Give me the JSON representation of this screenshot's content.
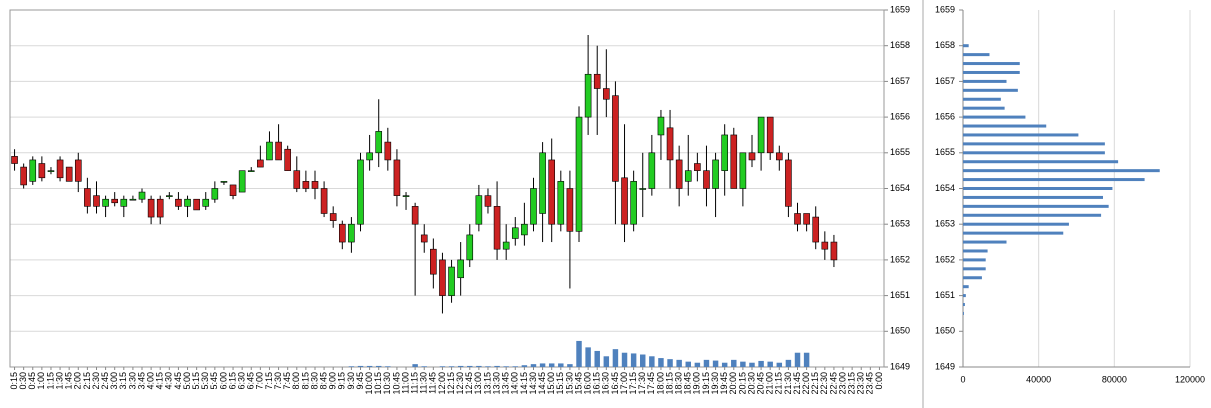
{
  "chart_data": [
    {
      "type": "candlestick",
      "categories": [
        "0:15",
        "0:30",
        "0:45",
        "1:00",
        "1:15",
        "1:30",
        "1:45",
        "2:00",
        "2:15",
        "2:30",
        "2:45",
        "3:00",
        "3:15",
        "3:30",
        "3:45",
        "4:00",
        "4:15",
        "4:30",
        "4:45",
        "5:00",
        "5:15",
        "5:30",
        "5:45",
        "6:00",
        "6:15",
        "6:30",
        "6:45",
        "7:00",
        "7:15",
        "7:30",
        "7:45",
        "8:00",
        "8:15",
        "8:30",
        "8:45",
        "9:00",
        "9:15",
        "9:30",
        "9:45",
        "10:00",
        "10:15",
        "10:30",
        "10:45",
        "11:00",
        "11:15",
        "11:30",
        "11:45",
        "12:00",
        "12:15",
        "12:30",
        "12:45",
        "13:00",
        "13:15",
        "13:30",
        "13:45",
        "14:00",
        "14:15",
        "14:30",
        "14:45",
        "15:00",
        "15:15",
        "15:30",
        "15:45",
        "16:00",
        "16:15",
        "16:30",
        "16:45",
        "17:00",
        "17:15",
        "17:30",
        "17:45",
        "18:00",
        "18:15",
        "18:30",
        "18:45",
        "19:00",
        "19:15",
        "19:30",
        "19:45",
        "20:00",
        "20:15",
        "20:30",
        "20:45",
        "21:00",
        "21:15",
        "21:30",
        "21:45",
        "22:00",
        "22:15",
        "22:30",
        "22:45",
        "23:00",
        "23:15",
        "23:30",
        "23:45",
        "0:00"
      ],
      "open": [
        1654.9,
        1654.6,
        1654.2,
        1654.7,
        1654.5,
        1654.8,
        1654.6,
        1654.8,
        1654.0,
        1653.8,
        1653.5,
        1653.7,
        1653.5,
        1653.7,
        1653.7,
        1653.7,
        1653.7,
        1653.8,
        1653.7,
        1653.5,
        1653.7,
        1653.5,
        1653.7,
        1654.2,
        1654.1,
        1653.9,
        1654.5,
        1654.8,
        1654.8,
        1655.3,
        1655.1,
        1654.5,
        1654.2,
        1654.2,
        1654.0,
        1653.3,
        1653.0,
        1652.5,
        1653.0,
        1654.8,
        1655.0,
        1655.3,
        1654.8,
        1653.8,
        1653.5,
        1652.7,
        1652.3,
        1652.0,
        1651.0,
        1651.5,
        1652.0,
        1653.0,
        1653.8,
        1653.5,
        1652.3,
        1652.6,
        1652.7,
        1653.0,
        1653.3,
        1654.8,
        1653.0,
        1654.0,
        1652.8,
        1656.0,
        1657.2,
        1656.8,
        1656.6,
        1654.3,
        1653.0,
        1654.0,
        1654.0,
        1655.5,
        1655.7,
        1654.8,
        1654.2,
        1654.7,
        1654.5,
        1654.0,
        1654.5,
        1655.5,
        1654.0,
        1655.0,
        1655.0,
        1656.0,
        1655.0,
        1654.8,
        1653.3,
        1653.3,
        1653.2,
        1652.5,
        1652.5,
        null,
        null,
        null,
        null,
        null
      ],
      "high": [
        1655.1,
        1654.7,
        1654.9,
        1654.9,
        1654.6,
        1654.9,
        1654.6,
        1655.0,
        1654.3,
        1654.2,
        1653.8,
        1653.9,
        1653.8,
        1653.8,
        1654.0,
        1653.8,
        1653.8,
        1653.9,
        1653.9,
        1653.8,
        1653.7,
        1653.9,
        1654.2,
        1654.2,
        1654.1,
        1654.5,
        1654.6,
        1655.2,
        1655.6,
        1655.8,
        1655.2,
        1654.9,
        1654.5,
        1654.5,
        1654.2,
        1653.5,
        1653.1,
        1653.2,
        1655.0,
        1655.5,
        1656.5,
        1655.7,
        1655.1,
        1653.9,
        1653.6,
        1653.0,
        1652.6,
        1652.2,
        1652.0,
        1652.5,
        1653.0,
        1654.1,
        1654.0,
        1654.2,
        1653.0,
        1653.2,
        1653.6,
        1654.3,
        1655.3,
        1655.4,
        1654.5,
        1654.5,
        1656.3,
        1658.3,
        1658.0,
        1657.9,
        1657.0,
        1655.8,
        1654.5,
        1655.0,
        1655.5,
        1656.2,
        1656.2,
        1655.2,
        1655.5,
        1655.0,
        1655.2,
        1655.0,
        1655.8,
        1655.7,
        1655.0,
        1655.5,
        1656.0,
        1656.0,
        1655.2,
        1655.0,
        1653.6,
        1653.3,
        1653.5,
        1652.8,
        1652.7,
        null,
        null,
        null,
        null,
        null
      ],
      "low": [
        1654.5,
        1654.0,
        1654.1,
        1654.2,
        1654.4,
        1654.2,
        1654.2,
        1653.9,
        1653.3,
        1653.3,
        1653.2,
        1653.5,
        1653.2,
        1653.7,
        1653.6,
        1653.0,
        1653.0,
        1653.7,
        1653.4,
        1653.2,
        1653.4,
        1653.4,
        1653.6,
        1654.1,
        1653.7,
        1653.9,
        1654.5,
        1654.6,
        1654.8,
        1654.8,
        1654.5,
        1653.9,
        1653.9,
        1653.7,
        1653.2,
        1652.9,
        1652.3,
        1652.2,
        1652.8,
        1654.5,
        1654.6,
        1654.5,
        1653.5,
        1653.4,
        1651.0,
        1652.2,
        1651.2,
        1650.5,
        1650.8,
        1651.0,
        1651.8,
        1652.8,
        1653.3,
        1652.0,
        1652.0,
        1652.4,
        1652.4,
        1652.8,
        1652.5,
        1652.5,
        1652.8,
        1651.2,
        1652.5,
        1655.5,
        1655.5,
        1656.0,
        1653.0,
        1652.5,
        1652.8,
        1653.2,
        1653.8,
        1654.8,
        1654.0,
        1653.5,
        1653.8,
        1654.2,
        1653.5,
        1653.2,
        1653.8,
        1654.0,
        1653.5,
        1654.6,
        1654.5,
        1654.8,
        1654.5,
        1653.2,
        1652.8,
        1652.8,
        1652.3,
        1652.0,
        1651.8,
        null,
        null,
        null,
        null,
        null
      ],
      "close": [
        1654.7,
        1654.1,
        1654.8,
        1654.3,
        1654.5,
        1654.3,
        1654.2,
        1654.2,
        1653.5,
        1653.5,
        1653.7,
        1653.6,
        1653.7,
        1653.7,
        1653.9,
        1653.2,
        1653.2,
        1653.8,
        1653.5,
        1653.7,
        1653.4,
        1653.7,
        1654.0,
        1654.2,
        1653.8,
        1654.5,
        1654.5,
        1654.6,
        1655.3,
        1654.8,
        1654.5,
        1654.0,
        1654.0,
        1654.0,
        1653.3,
        1653.1,
        1652.5,
        1653.0,
        1654.8,
        1655.0,
        1655.6,
        1654.8,
        1653.8,
        1653.8,
        1653.0,
        1652.5,
        1651.6,
        1651.0,
        1651.8,
        1652.0,
        1652.7,
        1653.8,
        1653.5,
        1652.3,
        1652.5,
        1652.9,
        1653.0,
        1654.0,
        1655.0,
        1653.0,
        1654.2,
        1652.8,
        1656.0,
        1657.2,
        1656.8,
        1656.5,
        1654.2,
        1653.0,
        1654.2,
        1654.0,
        1655.0,
        1656.0,
        1654.8,
        1654.0,
        1654.5,
        1654.5,
        1654.0,
        1654.8,
        1655.5,
        1654.0,
        1655.0,
        1654.8,
        1656.0,
        1655.0,
        1654.8,
        1653.5,
        1653.0,
        1653.0,
        1652.5,
        1652.3,
        1652.0,
        null,
        null,
        null,
        null,
        null
      ],
      "volume": [
        0,
        0,
        0,
        0,
        0,
        0,
        0,
        0,
        0,
        0,
        0,
        0,
        0,
        0,
        0,
        0,
        0,
        0,
        0,
        0,
        0,
        0,
        0,
        0,
        0,
        0,
        0,
        0,
        0,
        0,
        0,
        0,
        0,
        0,
        0,
        0,
        0,
        0.02,
        0.03,
        0.03,
        0.03,
        0.02,
        0,
        0,
        0.08,
        0.02,
        0,
        0.02,
        0.02,
        0.03,
        0.03,
        0.03,
        0.02,
        0.03,
        0.02,
        0.02,
        0.05,
        0.08,
        0.1,
        0.1,
        0.1,
        0.08,
        0.73,
        0.55,
        0.45,
        0.3,
        0.5,
        0.4,
        0.38,
        0.35,
        0.3,
        0.25,
        0.22,
        0.2,
        0.15,
        0.12,
        0.2,
        0.18,
        0.12,
        0.2,
        0.15,
        0.12,
        0.17,
        0.15,
        0.12,
        0.2,
        0.4,
        0.4,
        0,
        0,
        0,
        null,
        null,
        null,
        null,
        null
      ],
      "up_color": "#22cc22",
      "down_color": "#cc2222",
      "volume_color": "#4f81bd",
      "ylim": [
        1649,
        1659
      ],
      "yticks": [
        1649,
        1650,
        1651,
        1652,
        1653,
        1654,
        1655,
        1656,
        1657,
        1658,
        1659
      ],
      "grid": true
    },
    {
      "type": "hbar",
      "y": [
        1658,
        1657.75,
        1657.5,
        1657.25,
        1657,
        1656.75,
        1656.5,
        1656.25,
        1656,
        1655.75,
        1655.5,
        1655.25,
        1655,
        1654.75,
        1654.5,
        1654.25,
        1654,
        1653.75,
        1653.5,
        1653.25,
        1653,
        1652.75,
        1652.5,
        1652.25,
        1652,
        1651.75,
        1651.5,
        1651.25,
        1651,
        1650.75,
        1650.5
      ],
      "values": [
        3000,
        14000,
        30000,
        30000,
        23000,
        29000,
        20000,
        22000,
        33000,
        44000,
        61000,
        75000,
        75000,
        82000,
        104000,
        96000,
        79000,
        74000,
        77000,
        73000,
        56000,
        53000,
        23000,
        13000,
        12000,
        12000,
        10000,
        3000,
        1500,
        1000,
        500
      ],
      "color": "#4f81bd",
      "xlim": [
        0,
        120000
      ],
      "xticks": [
        0,
        40000,
        80000,
        120000
      ],
      "ylim": [
        1649,
        1659
      ],
      "yticks": [
        1649,
        1650,
        1651,
        1652,
        1653,
        1654,
        1655,
        1656,
        1657,
        1658,
        1659
      ],
      "grid": true
    }
  ]
}
